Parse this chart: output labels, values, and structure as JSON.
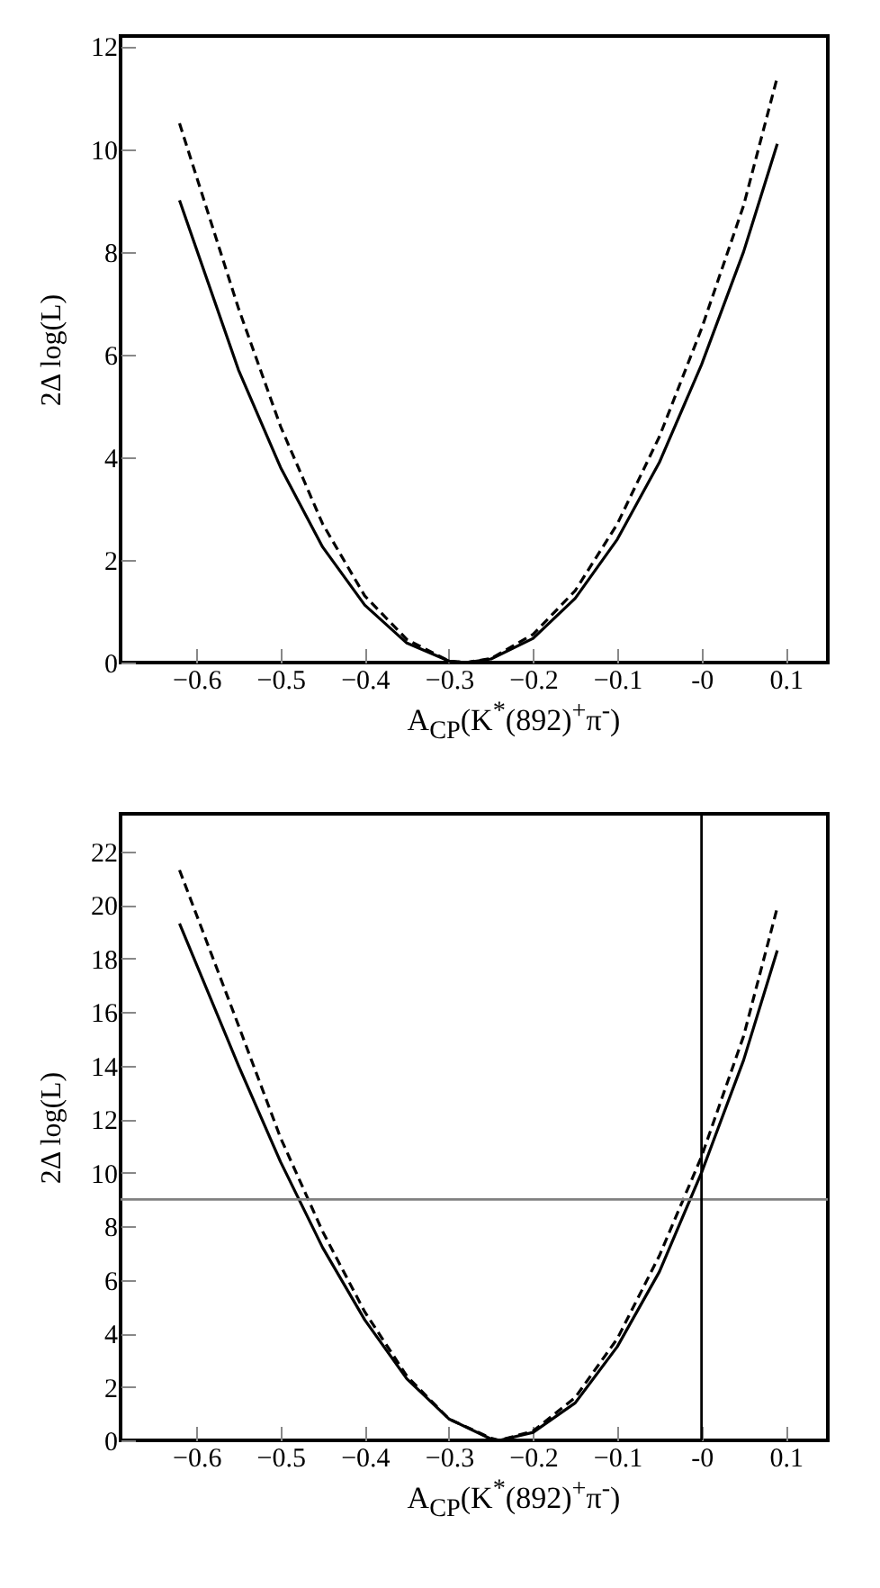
{
  "chart_data": [
    {
      "type": "line",
      "xlabel": "A$_{CP}$(K$^{*}$(892)$^{+}$π$^{-}$)",
      "ylabel": "2Δ log(L)",
      "xlim": [
        -0.69,
        0.15
      ],
      "ylim": [
        0,
        12.2
      ],
      "xticks": [
        -0.6,
        -0.5,
        -0.4,
        -0.3,
        -0.2,
        -0.1,
        {
          "value": 0,
          "label": "-0"
        },
        0.1
      ],
      "yticks": [
        0,
        2,
        4,
        6,
        8,
        10,
        12
      ],
      "x": [
        -0.62,
        -0.55,
        -0.5,
        -0.45,
        -0.4,
        -0.35,
        -0.3,
        -0.28,
        -0.25,
        -0.2,
        -0.15,
        -0.1,
        -0.05,
        0,
        0.05,
        0.09
      ],
      "series": [
        {
          "color": "#000000",
          "line_style": "solid",
          "values": [
            9.0,
            5.7,
            3.8,
            2.25,
            1.12,
            0.38,
            0.03,
            0,
            0.07,
            0.47,
            1.25,
            2.4,
            3.9,
            5.8,
            8.0,
            10.1
          ]
        },
        {
          "color": "#000000",
          "line_style": "dashed",
          "values": [
            10.5,
            6.9,
            4.6,
            2.7,
            1.3,
            0.45,
            0.03,
            0,
            0.08,
            0.55,
            1.4,
            2.7,
            4.4,
            6.5,
            8.9,
            11.4
          ]
        }
      ],
      "grid": false
    },
    {
      "type": "line",
      "xlabel": "A$_{CP}$(K$^{*}$(892)$^{+}$π$^{-}$)",
      "ylabel": "2Δ log(L)",
      "xlim": [
        -0.69,
        0.15
      ],
      "ylim": [
        0,
        23.4
      ],
      "xticks": [
        -0.6,
        -0.5,
        -0.4,
        -0.3,
        -0.2,
        -0.1,
        {
          "value": 0,
          "label": "-0"
        },
        0.1
      ],
      "yticks": [
        0,
        2,
        4,
        6,
        8,
        10,
        12,
        14,
        16,
        18,
        20,
        22
      ],
      "x": [
        -0.62,
        -0.55,
        -0.5,
        -0.45,
        -0.4,
        -0.35,
        -0.3,
        -0.25,
        -0.24,
        -0.2,
        -0.15,
        -0.1,
        -0.05,
        0,
        0.05,
        0.09
      ],
      "series": [
        {
          "color": "#000000",
          "line_style": "solid",
          "values": [
            19.3,
            14.0,
            10.4,
            7.2,
            4.5,
            2.3,
            0.8,
            0.05,
            0,
            0.3,
            1.4,
            3.5,
            6.3,
            10.0,
            14.2,
            18.3
          ]
        },
        {
          "color": "#000000",
          "line_style": "dashed",
          "values": [
            21.3,
            15.5,
            11.3,
            7.8,
            4.8,
            2.4,
            0.8,
            0.08,
            0,
            0.35,
            1.6,
            3.8,
            6.9,
            10.6,
            15.1,
            19.9
          ]
        }
      ],
      "ref_lines": [
        {
          "axis": "y",
          "value": 9,
          "color": "#808080"
        },
        {
          "axis": "x",
          "value": 0,
          "color": "#000000"
        }
      ],
      "grid": false
    }
  ]
}
